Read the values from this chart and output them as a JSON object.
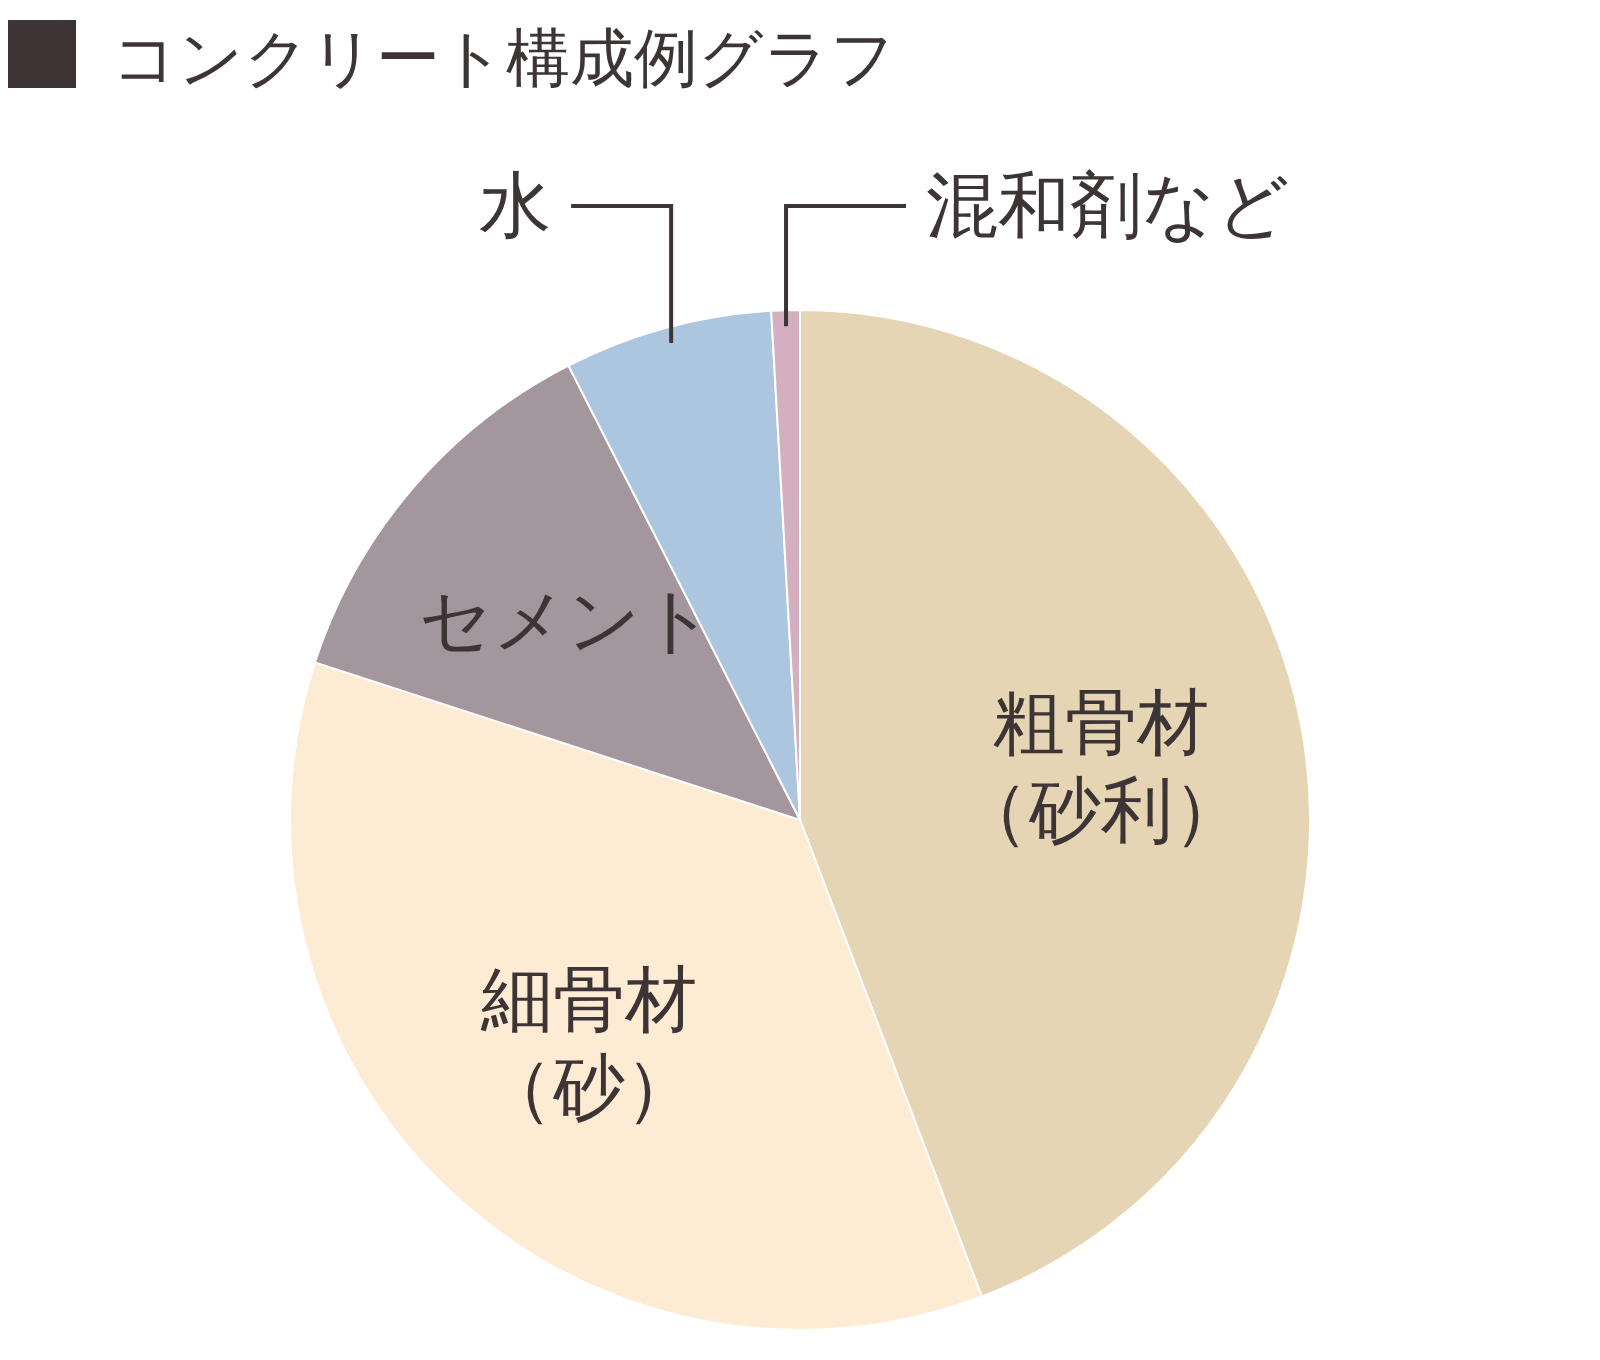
{
  "chart_data": {
    "type": "pie",
    "title": "コンクリート構成例グラフ",
    "categories": [
      "粗骨材（砂利）",
      "細骨材（砂）",
      "セメント",
      "水",
      "混和剤など"
    ],
    "values": [
      44.2,
      35.8,
      12.5,
      6.6,
      0.9
    ],
    "colors": [
      "#e5d5b5",
      "#fdebd3",
      "#a3979d",
      "#adc6df",
      "#d4afbf"
    ]
  }
}
